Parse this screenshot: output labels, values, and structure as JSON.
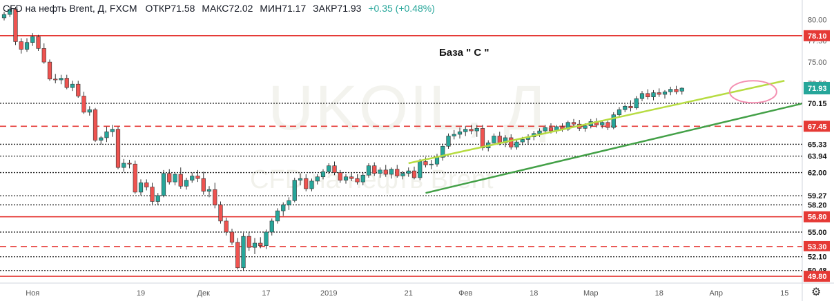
{
  "header": {
    "symbol": "CFD на нефть Brent, Д, FXCM",
    "open": "ОТКР71.58",
    "high": "МАКС72.02",
    "low": "МИН71.17",
    "close": "ЗАКР71.93",
    "change": "+0.35 (+0.48%)"
  },
  "watermark": {
    "main": "UKOIL, Д",
    "sub": "CFD на нефть Brent"
  },
  "annotation": "База \" С \"",
  "colors": {
    "up": "#26a69a",
    "down": "#ef5350",
    "red_line": "#e53935",
    "dotted_line": "#222222",
    "upper_trend": "#b7dc42",
    "lower_trend": "#43a047",
    "ellipse": "#f48fb1",
    "price_tag": "#26a69a"
  },
  "icons": {
    "settings": "gear-icon"
  },
  "chart_data": {
    "type": "candlestick",
    "y_axis": {
      "range": [
        49.0,
        82.3
      ],
      "tick_labels": [
        "80.00",
        "77.50",
        "75.00",
        "72.50"
      ],
      "tick_values": [
        80.0,
        77.5,
        75.0,
        72.5
      ]
    },
    "x_axis": {
      "tick_labels": [
        "Ноя",
        "19",
        "Дек",
        "17",
        "2019",
        "21",
        "Фев",
        "18",
        "Мар",
        "18",
        "Апр",
        "15"
      ],
      "tick_bar_index": [
        5,
        24,
        35,
        46,
        57,
        71,
        81,
        93,
        103,
        115,
        125,
        137
      ]
    },
    "horizontal_levels": [
      {
        "value": 78.1,
        "label": "78.10",
        "style": "solid-red"
      },
      {
        "value": 70.15,
        "label": "70.15",
        "style": "dotted"
      },
      {
        "value": 67.45,
        "label": "67.45",
        "style": "dashed-red"
      },
      {
        "value": 65.33,
        "label": "65.33",
        "style": "dotted"
      },
      {
        "value": 63.94,
        "label": "63.94",
        "style": "dotted"
      },
      {
        "value": 62.0,
        "label": "62.00",
        "style": "dotted"
      },
      {
        "value": 59.27,
        "label": "59.27",
        "style": "dotted"
      },
      {
        "value": 58.2,
        "label": "58.20",
        "style": "dotted"
      },
      {
        "value": 56.8,
        "label": "56.80",
        "style": "solid-red"
      },
      {
        "value": 55.0,
        "label": "55.00",
        "style": "dotted"
      },
      {
        "value": 53.3,
        "label": "53.30",
        "style": "dashed-red"
      },
      {
        "value": 52.1,
        "label": "52.10",
        "style": "dotted"
      },
      {
        "value": 50.48,
        "label": "50.48",
        "style": "dotted"
      },
      {
        "value": 49.8,
        "label": "49.80",
        "style": "solid-red"
      }
    ],
    "last_price": {
      "value": 71.93,
      "label": "71.93"
    },
    "trend_lines": [
      {
        "name": "upper",
        "points": [
          [
            71,
            63.1
          ],
          [
            137,
            72.8
          ]
        ]
      },
      {
        "name": "lower",
        "points": [
          [
            74,
            59.6
          ],
          [
            140,
            70.1
          ]
        ]
      }
    ],
    "highlight_ellipse": {
      "center_bar": 131.5,
      "center_value": 71.5
    },
    "candles": [
      [
        0,
        80.2,
        80.9,
        79.9,
        80.6
      ],
      [
        1,
        80.6,
        81.5,
        80.3,
        81.2
      ],
      [
        2,
        81.2,
        81.5,
        77.0,
        77.4
      ],
      [
        3,
        77.4,
        77.8,
        76.0,
        76.5
      ],
      [
        4,
        76.5,
        77.8,
        76.2,
        77.3
      ],
      [
        5,
        77.3,
        78.4,
        76.9,
        78.0
      ],
      [
        6,
        78.0,
        78.2,
        76.3,
        76.6
      ],
      [
        7,
        76.6,
        77.2,
        74.8,
        75.0
      ],
      [
        8,
        75.0,
        75.3,
        72.8,
        73.0
      ],
      [
        9,
        73.0,
        73.6,
        72.5,
        72.9
      ],
      [
        10,
        72.9,
        73.5,
        72.4,
        73.1
      ],
      [
        11,
        73.1,
        73.5,
        71.8,
        72.0
      ],
      [
        12,
        72.0,
        72.8,
        71.6,
        72.4
      ],
      [
        13,
        72.4,
        72.8,
        70.8,
        71.0
      ],
      [
        14,
        71.0,
        71.5,
        68.9,
        69.1
      ],
      [
        15,
        69.1,
        69.8,
        68.7,
        69.4
      ],
      [
        16,
        69.4,
        69.6,
        65.6,
        65.8
      ],
      [
        17,
        65.8,
        66.3,
        65.3,
        66.1
      ],
      [
        18,
        66.1,
        67.4,
        65.6,
        66.8
      ],
      [
        19,
        66.8,
        67.6,
        66.2,
        67.1
      ],
      [
        20,
        67.1,
        67.4,
        62.4,
        62.6
      ],
      [
        21,
        62.6,
        63.6,
        62.1,
        63.1
      ],
      [
        22,
        63.1,
        63.5,
        62.5,
        63.0
      ],
      [
        23,
        63.0,
        63.4,
        59.5,
        59.7
      ],
      [
        24,
        59.7,
        61.2,
        59.3,
        60.8
      ],
      [
        25,
        60.8,
        61.2,
        59.9,
        60.3
      ],
      [
        26,
        60.3,
        60.8,
        58.3,
        58.6
      ],
      [
        27,
        58.6,
        59.6,
        58.2,
        59.3
      ],
      [
        28,
        59.3,
        62.3,
        59.1,
        61.9
      ],
      [
        29,
        61.9,
        62.4,
        60.6,
        60.9
      ],
      [
        30,
        60.9,
        62.0,
        60.5,
        61.8
      ],
      [
        31,
        61.8,
        62.6,
        60.1,
        60.4
      ],
      [
        32,
        60.4,
        61.4,
        60.0,
        61.1
      ],
      [
        33,
        61.1,
        62.0,
        60.8,
        61.6
      ],
      [
        34,
        61.6,
        62.3,
        60.9,
        61.3
      ],
      [
        35,
        61.3,
        62.1,
        59.4,
        59.8
      ],
      [
        36,
        59.8,
        60.4,
        59.1,
        60.0
      ],
      [
        37,
        60.0,
        60.8,
        57.8,
        58.2
      ],
      [
        38,
        58.2,
        58.6,
        56.0,
        56.3
      ],
      [
        39,
        56.3,
        56.7,
        54.6,
        55.0
      ],
      [
        40,
        55.0,
        55.4,
        53.5,
        53.8
      ],
      [
        41,
        53.8,
        54.3,
        50.6,
        50.8
      ],
      [
        42,
        50.8,
        54.9,
        50.5,
        54.5
      ],
      [
        43,
        54.5,
        55.0,
        52.8,
        53.2
      ],
      [
        44,
        53.2,
        54.3,
        52.4,
        53.7
      ],
      [
        45,
        53.7,
        54.4,
        53.1,
        53.4
      ],
      [
        46,
        53.4,
        55.3,
        53.0,
        55.0
      ],
      [
        47,
        55.0,
        56.6,
        54.6,
        56.3
      ],
      [
        48,
        56.3,
        57.8,
        56.0,
        57.5
      ],
      [
        49,
        57.5,
        58.5,
        56.9,
        58.2
      ],
      [
        50,
        58.2,
        59.1,
        57.6,
        58.7
      ],
      [
        51,
        58.7,
        61.4,
        58.5,
        61.1
      ],
      [
        52,
        61.1,
        61.9,
        60.5,
        61.3
      ],
      [
        53,
        61.3,
        61.8,
        59.8,
        60.1
      ],
      [
        54,
        60.1,
        61.3,
        59.8,
        61.0
      ],
      [
        55,
        61.0,
        61.8,
        60.6,
        61.5
      ],
      [
        56,
        61.5,
        62.4,
        61.2,
        62.1
      ],
      [
        57,
        62.1,
        63.1,
        61.8,
        62.8
      ],
      [
        58,
        62.8,
        63.3,
        61.7,
        62.0
      ],
      [
        59,
        62.0,
        62.3,
        60.8,
        61.1
      ],
      [
        60,
        61.1,
        61.8,
        60.7,
        61.5
      ],
      [
        61,
        61.5,
        62.0,
        61.0,
        61.3
      ],
      [
        62,
        61.3,
        61.8,
        60.6,
        60.9
      ],
      [
        63,
        60.9,
        62.0,
        60.5,
        61.7
      ],
      [
        64,
        61.7,
        63.1,
        61.4,
        62.8
      ],
      [
        65,
        62.8,
        63.2,
        61.6,
        61.9
      ],
      [
        66,
        61.9,
        62.6,
        61.4,
        62.3
      ],
      [
        67,
        62.3,
        62.9,
        61.5,
        61.8
      ],
      [
        68,
        61.8,
        62.6,
        61.3,
        62.4
      ],
      [
        69,
        62.4,
        62.9,
        61.4,
        61.6
      ],
      [
        70,
        61.6,
        62.2,
        61.2,
        61.9
      ],
      [
        71,
        61.9,
        62.6,
        61.5,
        62.2
      ],
      [
        72,
        62.2,
        62.7,
        61.2,
        61.4
      ],
      [
        73,
        61.4,
        63.6,
        61.1,
        63.3
      ],
      [
        74,
        63.3,
        63.8,
        62.6,
        62.9
      ],
      [
        75,
        62.9,
        63.5,
        62.4,
        63.0
      ],
      [
        76,
        63.0,
        64.2,
        62.7,
        63.8
      ],
      [
        77,
        63.8,
        65.4,
        63.4,
        65.1
      ],
      [
        78,
        65.1,
        66.6,
        64.8,
        66.3
      ],
      [
        79,
        66.3,
        67.0,
        65.9,
        66.5
      ],
      [
        80,
        66.5,
        67.3,
        66.0,
        66.8
      ],
      [
        81,
        66.8,
        67.5,
        66.3,
        67.1
      ],
      [
        82,
        67.1,
        67.6,
        66.5,
        66.9
      ],
      [
        83,
        66.9,
        67.6,
        66.2,
        67.2
      ],
      [
        84,
        67.2,
        67.6,
        64.6,
        64.9
      ],
      [
        85,
        64.9,
        65.8,
        64.5,
        65.5
      ],
      [
        86,
        65.5,
        66.6,
        65.2,
        66.3
      ],
      [
        87,
        66.3,
        66.8,
        65.2,
        65.5
      ],
      [
        88,
        65.5,
        66.4,
        65.0,
        66.1
      ],
      [
        89,
        66.1,
        66.5,
        64.7,
        65.0
      ],
      [
        90,
        65.0,
        65.9,
        64.7,
        65.6
      ],
      [
        91,
        65.6,
        66.2,
        65.2,
        65.9
      ],
      [
        92,
        65.9,
        66.5,
        65.4,
        66.2
      ],
      [
        93,
        66.2,
        66.9,
        65.8,
        66.6
      ],
      [
        94,
        66.6,
        67.2,
        66.2,
        66.9
      ],
      [
        95,
        66.9,
        67.6,
        66.5,
        67.3
      ],
      [
        96,
        67.3,
        67.8,
        66.6,
        66.9
      ],
      [
        97,
        66.9,
        67.6,
        66.6,
        67.4
      ],
      [
        98,
        67.4,
        67.8,
        66.8,
        67.1
      ],
      [
        99,
        67.1,
        68.1,
        66.9,
        67.9
      ],
      [
        100,
        67.9,
        68.3,
        67.4,
        67.7
      ],
      [
        101,
        67.7,
        68.2,
        66.9,
        67.2
      ],
      [
        102,
        67.2,
        67.8,
        66.8,
        67.5
      ],
      [
        103,
        67.5,
        68.3,
        67.2,
        68.0
      ],
      [
        104,
        68.0,
        68.4,
        67.3,
        67.6
      ],
      [
        105,
        67.6,
        68.2,
        67.2,
        67.9
      ],
      [
        106,
        67.9,
        68.1,
        67.0,
        67.3
      ],
      [
        107,
        67.3,
        69.1,
        67.1,
        68.8
      ],
      [
        108,
        68.8,
        69.7,
        68.5,
        69.4
      ],
      [
        109,
        69.4,
        70.0,
        69.1,
        69.8
      ],
      [
        110,
        69.8,
        70.5,
        69.2,
        69.6
      ],
      [
        111,
        69.6,
        71.0,
        69.4,
        70.7
      ],
      [
        112,
        70.7,
        71.6,
        70.4,
        71.3
      ],
      [
        113,
        71.3,
        71.8,
        70.6,
        70.9
      ],
      [
        114,
        70.9,
        71.7,
        70.5,
        71.4
      ],
      [
        115,
        71.4,
        71.9,
        70.9,
        71.2
      ],
      [
        116,
        71.2,
        71.7,
        70.7,
        71.5
      ],
      [
        117,
        71.5,
        72.1,
        71.1,
        71.8
      ],
      [
        118,
        71.8,
        72.2,
        71.2,
        71.5
      ],
      [
        119,
        71.58,
        72.02,
        71.17,
        71.93
      ]
    ]
  }
}
